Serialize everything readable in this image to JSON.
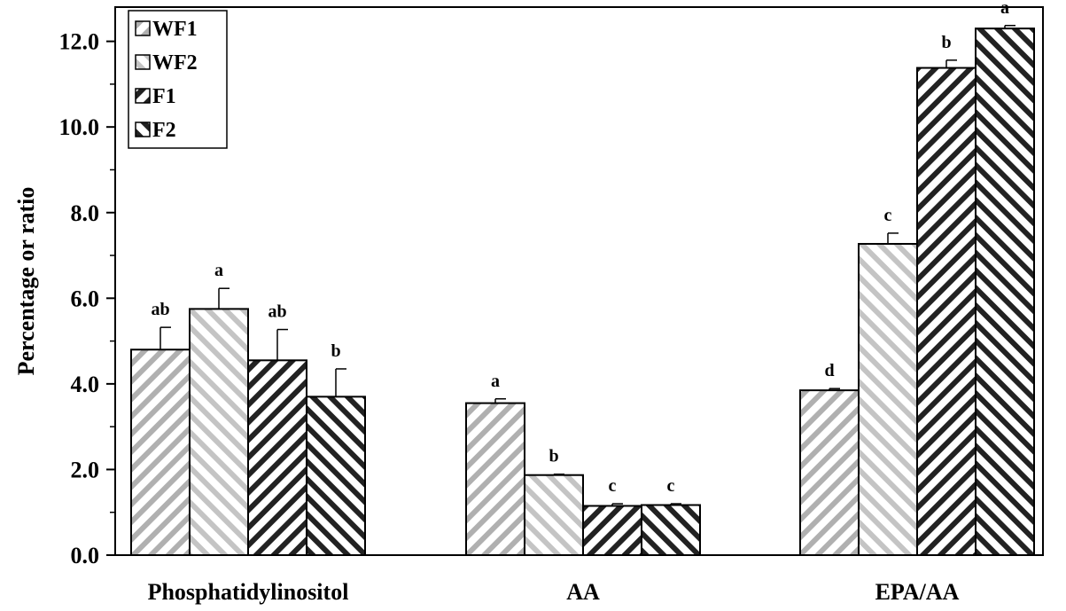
{
  "chart_data": {
    "type": "bar",
    "title": "",
    "xlabel": "",
    "ylabel": "Percentage or ratio",
    "ylim": [
      0,
      12.8
    ],
    "yticks": [
      "0.0",
      "2.0",
      "4.0",
      "6.0",
      "8.0",
      "10.0",
      "12.0"
    ],
    "categories": [
      "Phosphatidylinositol",
      "AA",
      "EPA/AA"
    ],
    "legend_position": "top-left",
    "grid": false,
    "series": [
      {
        "name": "WF1",
        "color": "#b0b0b0",
        "hatch": "light-diagonal",
        "values": [
          4.8,
          3.55,
          3.85
        ],
        "errors": [
          0.52,
          0.1,
          0.04
        ],
        "labels": [
          "ab",
          "a",
          "d"
        ]
      },
      {
        "name": "WF2",
        "color": "#c4c4c4",
        "hatch": "light-diagonal-reverse",
        "values": [
          5.75,
          1.87,
          7.27
        ],
        "errors": [
          0.48,
          0.02,
          0.25
        ],
        "labels": [
          "a",
          "b",
          "c"
        ]
      },
      {
        "name": "F1",
        "color": "#222222",
        "hatch": "dark-diagonal",
        "values": [
          4.55,
          1.15,
          11.38
        ],
        "errors": [
          0.72,
          0.05,
          0.18
        ],
        "labels": [
          "ab",
          "c",
          "b"
        ]
      },
      {
        "name": "F2",
        "color": "#222222",
        "hatch": "dark-diagonal-reverse",
        "values": [
          3.7,
          1.17,
          12.3
        ],
        "errors": [
          0.65,
          0.03,
          0.07
        ],
        "labels": [
          "b",
          "c",
          "a"
        ]
      }
    ]
  }
}
